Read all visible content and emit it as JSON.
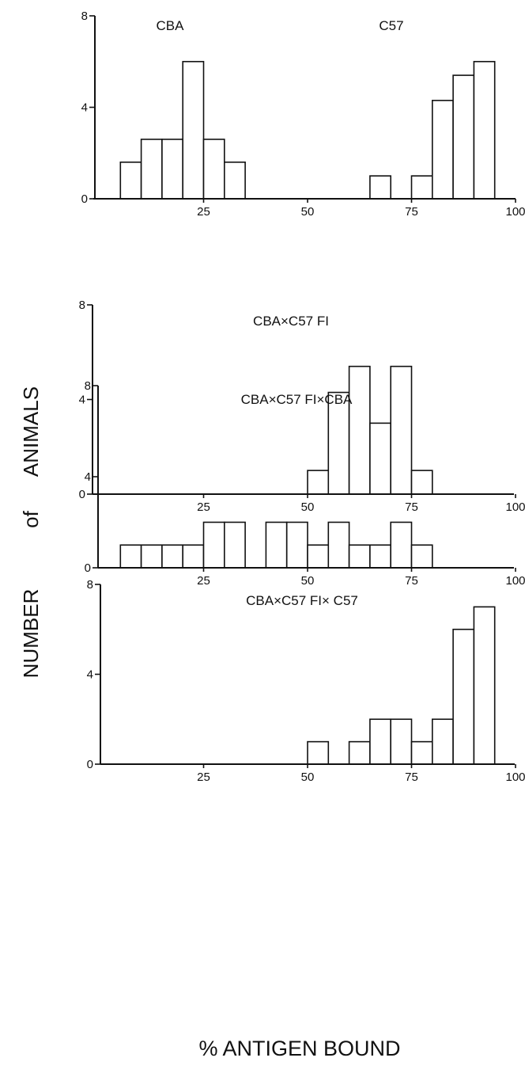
{
  "figure": {
    "ylabel_words": [
      "NUMBER",
      "of",
      "ANIMALS"
    ],
    "xlabel": "% ANTIGEN BOUND"
  },
  "chart_data": [
    {
      "type": "bar",
      "panel_labels": [
        "CBA",
        "C57"
      ],
      "xlim": [
        0,
        100
      ],
      "ylim": [
        0,
        8
      ],
      "x_ticks": [
        "25",
        "50",
        "75",
        "100"
      ],
      "y_ticks": [
        "0",
        "4",
        "8"
      ],
      "bin_width": 5,
      "bins": [
        {
          "x": 5,
          "count": 1.6
        },
        {
          "x": 10,
          "count": 2.6
        },
        {
          "x": 15,
          "count": 2.6
        },
        {
          "x": 20,
          "count": 6
        },
        {
          "x": 25,
          "count": 2.6
        },
        {
          "x": 30,
          "count": 1.6
        },
        {
          "x": 65,
          "count": 1
        },
        {
          "x": 75,
          "count": 1
        },
        {
          "x": 80,
          "count": 4.3
        },
        {
          "x": 85,
          "count": 5.4
        },
        {
          "x": 90,
          "count": 6
        }
      ]
    },
    {
      "type": "bar",
      "panel_labels": [
        "CBA×C57 FI"
      ],
      "xlim": [
        0,
        100
      ],
      "ylim": [
        0,
        8
      ],
      "x_ticks": [
        "25",
        "50",
        "75",
        "100"
      ],
      "y_ticks": [
        "0",
        "4",
        "8"
      ],
      "bin_width": 5,
      "bins": [
        {
          "x": 50,
          "count": 1
        },
        {
          "x": 55,
          "count": 4.3
        },
        {
          "x": 60,
          "count": 5.4
        },
        {
          "x": 65,
          "count": 3
        },
        {
          "x": 70,
          "count": 5.4
        },
        {
          "x": 75,
          "count": 1
        }
      ]
    },
    {
      "type": "bar",
      "panel_labels": [
        "CBA×C57 FI×CBA"
      ],
      "xlim": [
        0,
        100
      ],
      "ylim": [
        0,
        8
      ],
      "x_ticks": [
        "25",
        "50",
        "75",
        "100"
      ],
      "y_ticks": [
        "0",
        "4",
        "8"
      ],
      "bin_width": 5,
      "bins": [
        {
          "x": 5,
          "count": 1
        },
        {
          "x": 10,
          "count": 1
        },
        {
          "x": 15,
          "count": 1
        },
        {
          "x": 20,
          "count": 1
        },
        {
          "x": 25,
          "count": 2
        },
        {
          "x": 30,
          "count": 2
        },
        {
          "x": 40,
          "count": 2
        },
        {
          "x": 45,
          "count": 2
        },
        {
          "x": 50,
          "count": 1
        },
        {
          "x": 55,
          "count": 2
        },
        {
          "x": 60,
          "count": 1
        },
        {
          "x": 65,
          "count": 1
        },
        {
          "x": 70,
          "count": 2
        },
        {
          "x": 75,
          "count": 1
        }
      ]
    },
    {
      "type": "bar",
      "panel_labels": [
        "CBA×C57 FI× C57"
      ],
      "xlim": [
        0,
        100
      ],
      "ylim": [
        0,
        8
      ],
      "x_ticks": [
        "25",
        "50",
        "75",
        "100"
      ],
      "y_ticks": [
        "0",
        "4",
        "8"
      ],
      "bin_width": 5,
      "bins": [
        {
          "x": 50,
          "count": 1
        },
        {
          "x": 60,
          "count": 1
        },
        {
          "x": 65,
          "count": 2
        },
        {
          "x": 70,
          "count": 2
        },
        {
          "x": 75,
          "count": 1
        },
        {
          "x": 80,
          "count": 2
        },
        {
          "x": 85,
          "count": 6
        },
        {
          "x": 90,
          "count": 7
        }
      ]
    }
  ]
}
